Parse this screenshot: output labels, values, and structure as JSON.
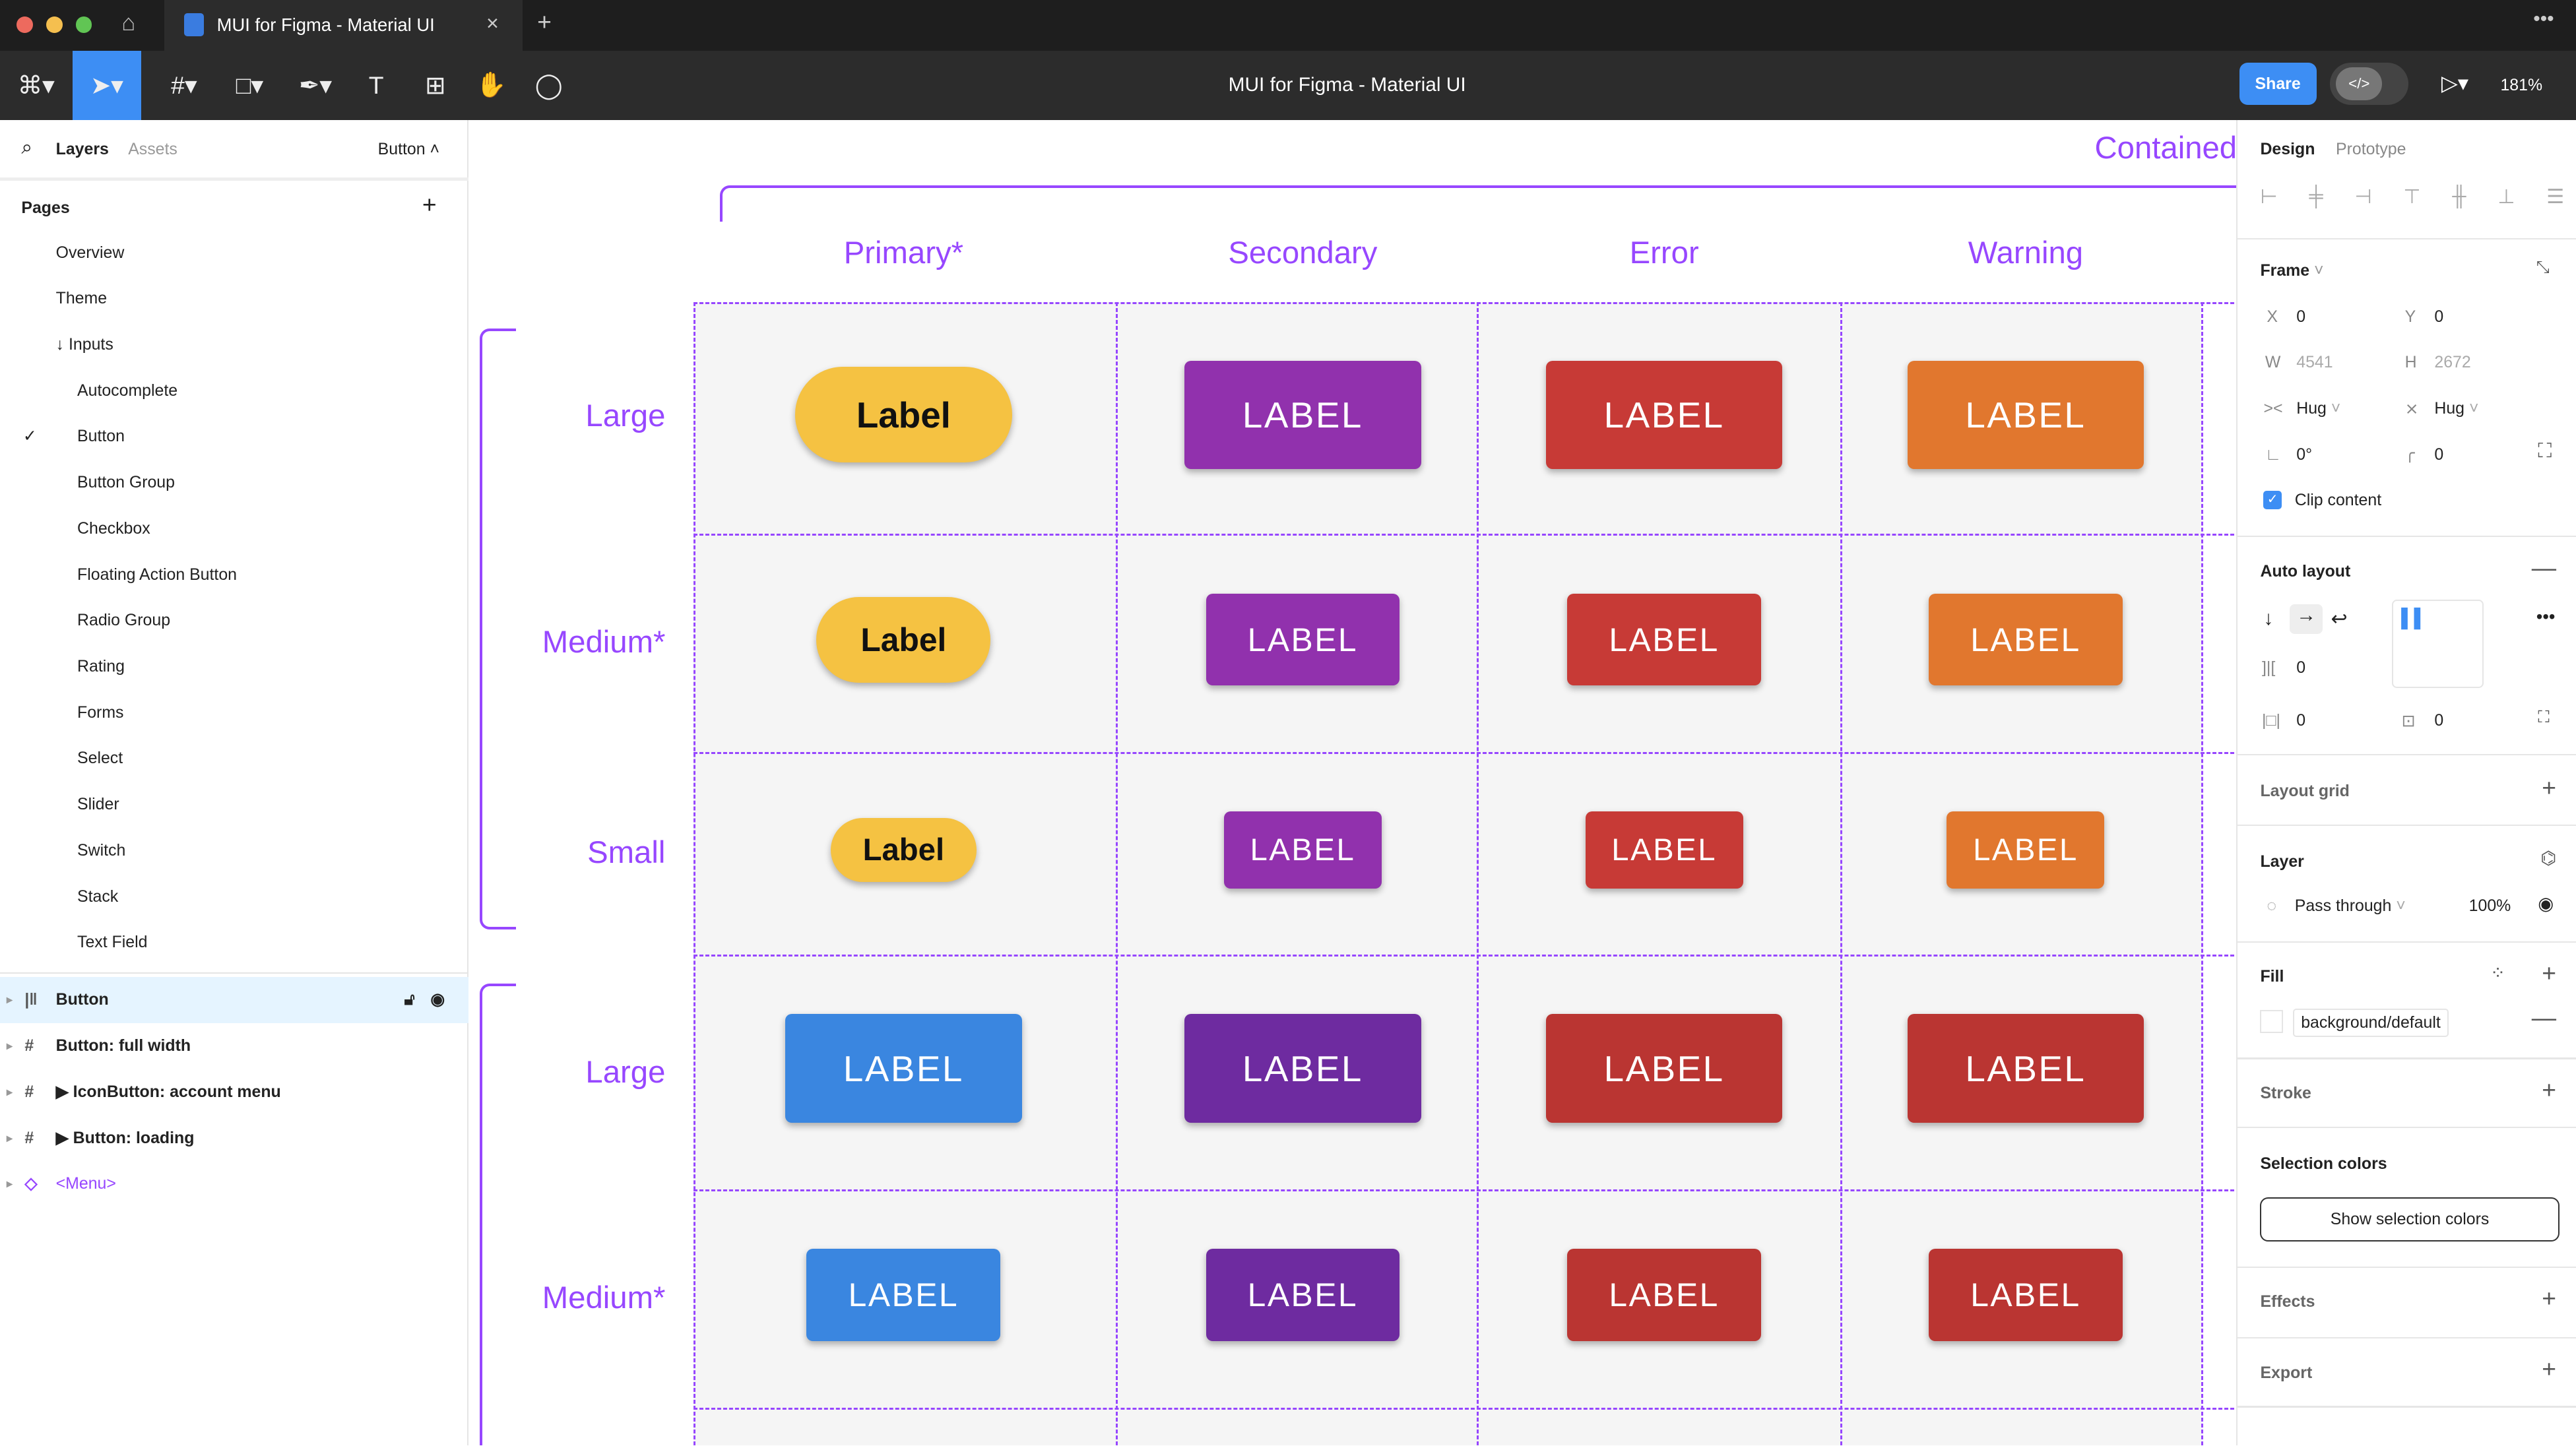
{
  "window": {
    "tab_title": "MUI for Figma - Material UI",
    "doc_title": "MUI for Figma - Material UI",
    "share": "Share",
    "zoom": "181%"
  },
  "left": {
    "tab_layers": "Layers",
    "tab_assets": "Assets",
    "page_selector": "Button",
    "pages_title": "Pages",
    "pages": [
      {
        "label": "Overview",
        "indent": 0
      },
      {
        "label": "Theme",
        "indent": 0
      },
      {
        "label": "↓ Inputs",
        "indent": 0
      },
      {
        "label": "Autocomplete",
        "indent": 1
      },
      {
        "label": "Button",
        "indent": 1,
        "selected": true
      },
      {
        "label": "Button Group",
        "indent": 1
      },
      {
        "label": "Checkbox",
        "indent": 1
      },
      {
        "label": "Floating Action Button",
        "indent": 1
      },
      {
        "label": "Radio Group",
        "indent": 1
      },
      {
        "label": "Rating",
        "indent": 1
      },
      {
        "label": "Forms",
        "indent": 1
      },
      {
        "label": "Select",
        "indent": 1
      },
      {
        "label": "Slider",
        "indent": 1
      },
      {
        "label": "Switch",
        "indent": 1
      },
      {
        "label": "Stack",
        "indent": 1
      },
      {
        "label": "Text Field",
        "indent": 1
      }
    ],
    "layers": [
      {
        "label": "Button",
        "icon": "auto-layout-icon",
        "selected": true
      },
      {
        "label": "Button: full width",
        "icon": "frame-icon"
      },
      {
        "label": "▶ IconButton: account menu",
        "icon": "frame-icon"
      },
      {
        "label": "▶ Button: loading",
        "icon": "frame-icon"
      },
      {
        "label": "<Menu>",
        "icon": "component-instance-icon",
        "purple": true
      }
    ]
  },
  "canvas": {
    "section_title": "Contained",
    "columns": [
      "Primary*",
      "Secondary",
      "Error",
      "Warning"
    ],
    "rows": [
      {
        "label": "Large",
        "size": "large",
        "primary_label": "Label",
        "primary_style": "pill",
        "label_text": "LABEL",
        "colors": [
          "#f5c242",
          "#9131ad",
          "#c73a36",
          "#e1772e"
        ]
      },
      {
        "label": "Medium*",
        "size": "medium",
        "primary_label": "Label",
        "primary_style": "pill",
        "label_text": "LABEL",
        "colors": [
          "#f5c242",
          "#9131ad",
          "#c73a36",
          "#e1772e"
        ]
      },
      {
        "label": "Small",
        "size": "small",
        "primary_label": "Label",
        "primary_style": "pill",
        "label_text": "LABEL",
        "colors": [
          "#f5c242",
          "#9131ad",
          "#c73a36",
          "#e1772e"
        ]
      },
      {
        "label": "Large",
        "size": "large",
        "primary_label": "LABEL",
        "primary_style": "rect",
        "label_text": "LABEL",
        "colors": [
          "#3a86e0",
          "#6e2ba0",
          "#ba3532",
          "#ba3532"
        ]
      },
      {
        "label": "Medium*",
        "size": "medium",
        "primary_label": "LABEL",
        "primary_style": "rect",
        "label_text": "LABEL",
        "colors": [
          "#3a86e0",
          "#6e2ba0",
          "#ba3532",
          "#ba3532"
        ]
      }
    ],
    "accent": "#9747ff"
  },
  "right": {
    "tab_design": "Design",
    "tab_prototype": "Prototype",
    "frame": "Frame",
    "x_label": "X",
    "x": "0",
    "y_label": "Y",
    "y": "0",
    "w_label": "W",
    "w": "4541",
    "h_label": "H",
    "h": "2672",
    "hug_w": "Hug",
    "hug_h": "Hug",
    "rotation": "0°",
    "radius": "0",
    "clip": "Clip content",
    "auto_layout": "Auto layout",
    "gap": "0",
    "pad_h": "0",
    "pad_v": "0",
    "layout_grid": "Layout grid",
    "layer": "Layer",
    "blend": "Pass through",
    "opacity": "100%",
    "fill": "Fill",
    "fill_style": "background/default",
    "stroke": "Stroke",
    "selection_colors": "Selection colors",
    "show_selection": "Show selection colors",
    "effects": "Effects",
    "export": "Export"
  }
}
